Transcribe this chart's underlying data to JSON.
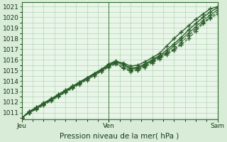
{
  "title": "",
  "xlabel": "Pression niveau de la mer( hPa )",
  "bg_color": "#d8ecd8",
  "plot_bg_color": "#e8f5e8",
  "grid_color": "#aacfaa",
  "line_color": "#2a5e2a",
  "marker_color": "#2a5e2a",
  "ylim": [
    1010.4,
    1021.4
  ],
  "yticks": [
    1011,
    1012,
    1013,
    1014,
    1015,
    1016,
    1017,
    1018,
    1019,
    1020,
    1021
  ],
  "day_labels": [
    "Jeu",
    "Ven",
    "Sam"
  ],
  "day_positions": [
    0.0,
    0.4444,
    1.0
  ],
  "xlabel_fontsize": 7.5,
  "tick_fontsize": 6.5,
  "series": [
    [
      1010.5,
      1011.1,
      1011.5,
      1011.9,
      1012.3,
      1012.7,
      1013.1,
      1013.5,
      1013.9,
      1014.3,
      1014.7,
      1015.1,
      1015.5,
      1015.8,
      1015.7,
      1015.4,
      1015.5,
      1015.8,
      1016.2,
      1016.6,
      1017.3,
      1018.0,
      1018.6,
      1019.2,
      1019.8,
      1020.3,
      1020.8,
      1021.0
    ],
    [
      1010.5,
      1011.1,
      1011.5,
      1011.9,
      1012.3,
      1012.7,
      1013.1,
      1013.5,
      1013.9,
      1014.3,
      1014.7,
      1015.1,
      1015.6,
      1015.9,
      1015.6,
      1015.2,
      1015.3,
      1015.6,
      1016.0,
      1016.4,
      1016.9,
      1017.5,
      1018.1,
      1018.8,
      1019.4,
      1020.0,
      1020.5,
      1020.9
    ],
    [
      1010.5,
      1011.0,
      1011.4,
      1011.8,
      1012.2,
      1012.6,
      1013.0,
      1013.4,
      1013.8,
      1014.2,
      1014.6,
      1015.0,
      1015.4,
      1015.8,
      1015.5,
      1015.1,
      1015.2,
      1015.5,
      1015.9,
      1016.3,
      1016.7,
      1017.3,
      1017.9,
      1018.5,
      1019.1,
      1019.7,
      1020.2,
      1020.7
    ],
    [
      1010.5,
      1011.0,
      1011.4,
      1011.8,
      1012.2,
      1012.6,
      1013.0,
      1013.4,
      1013.8,
      1014.2,
      1014.6,
      1015.0,
      1015.4,
      1015.7,
      1015.3,
      1015.0,
      1015.1,
      1015.4,
      1015.8,
      1016.2,
      1016.6,
      1017.0,
      1017.6,
      1018.3,
      1018.9,
      1019.5,
      1020.0,
      1020.5
    ],
    [
      1010.5,
      1011.0,
      1011.3,
      1011.7,
      1012.1,
      1012.5,
      1012.9,
      1013.3,
      1013.7,
      1014.1,
      1014.5,
      1014.9,
      1015.3,
      1015.6,
      1015.2,
      1014.9,
      1015.0,
      1015.3,
      1015.7,
      1016.1,
      1016.5,
      1016.9,
      1017.4,
      1018.0,
      1018.7,
      1019.4,
      1019.9,
      1020.3
    ]
  ],
  "series_styles": [
    {
      "lw": 1.0,
      "ls": "-"
    },
    {
      "lw": 1.0,
      "ls": "-"
    },
    {
      "lw": 0.8,
      "ls": "-"
    },
    {
      "lw": 0.8,
      "ls": "--"
    },
    {
      "lw": 0.8,
      "ls": "--"
    }
  ]
}
